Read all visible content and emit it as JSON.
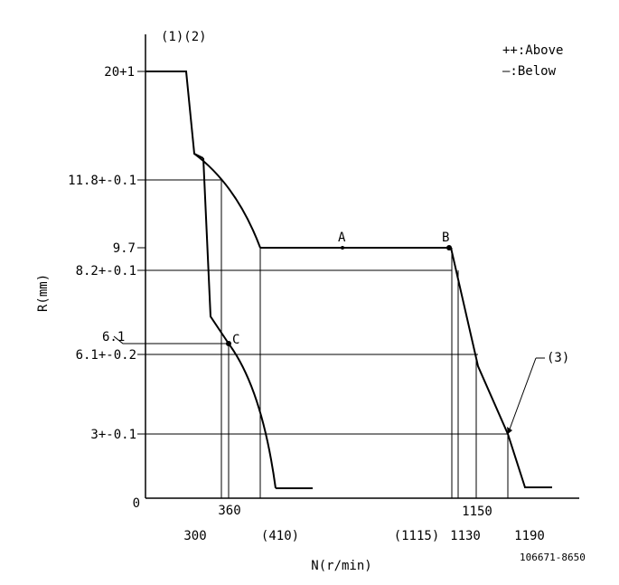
{
  "header_label": "(1)(2)",
  "legend": {
    "above": "++:Above",
    "below": "—:Below"
  },
  "y_axis": {
    "label": "R(mm)",
    "ticks": [
      "20+1",
      "11.8+-0.1",
      "9.7",
      "8.2+-0.1",
      "6.1",
      "6.1+-0.2",
      "3+-0.1",
      "0"
    ]
  },
  "x_axis": {
    "label": "N(r/min)",
    "ticks": [
      "300",
      "360",
      "(410)",
      "(1115)",
      "1130",
      "1150",
      "1190"
    ]
  },
  "points": {
    "a": "A",
    "b": "B",
    "c": "C"
  },
  "callout": "(3)",
  "footer_code": "106671-8650",
  "chart_data": {
    "type": "line",
    "xlabel": "N(r/min)",
    "ylabel": "R(mm)",
    "series": [
      {
        "x": [
          0,
          145,
          170,
          220,
          235,
          300,
          360,
          410,
          1115,
          1130,
          1150,
          1190,
          1230
        ],
        "y": [
          20,
          20,
          13.5,
          11.8,
          7.5,
          6.8,
          6.1,
          4.0,
          9.7,
          8.2,
          6.1,
          3,
          0.5
        ]
      }
    ],
    "annotations": [
      {
        "label": "A",
        "x": 520,
        "y": 9.7
      },
      {
        "label": "B",
        "x": 1115,
        "y": 9.7
      },
      {
        "label": "C",
        "x": 360,
        "y": 6.1
      },
      {
        "label": "(3)",
        "x": 1190,
        "y": 3
      }
    ]
  }
}
